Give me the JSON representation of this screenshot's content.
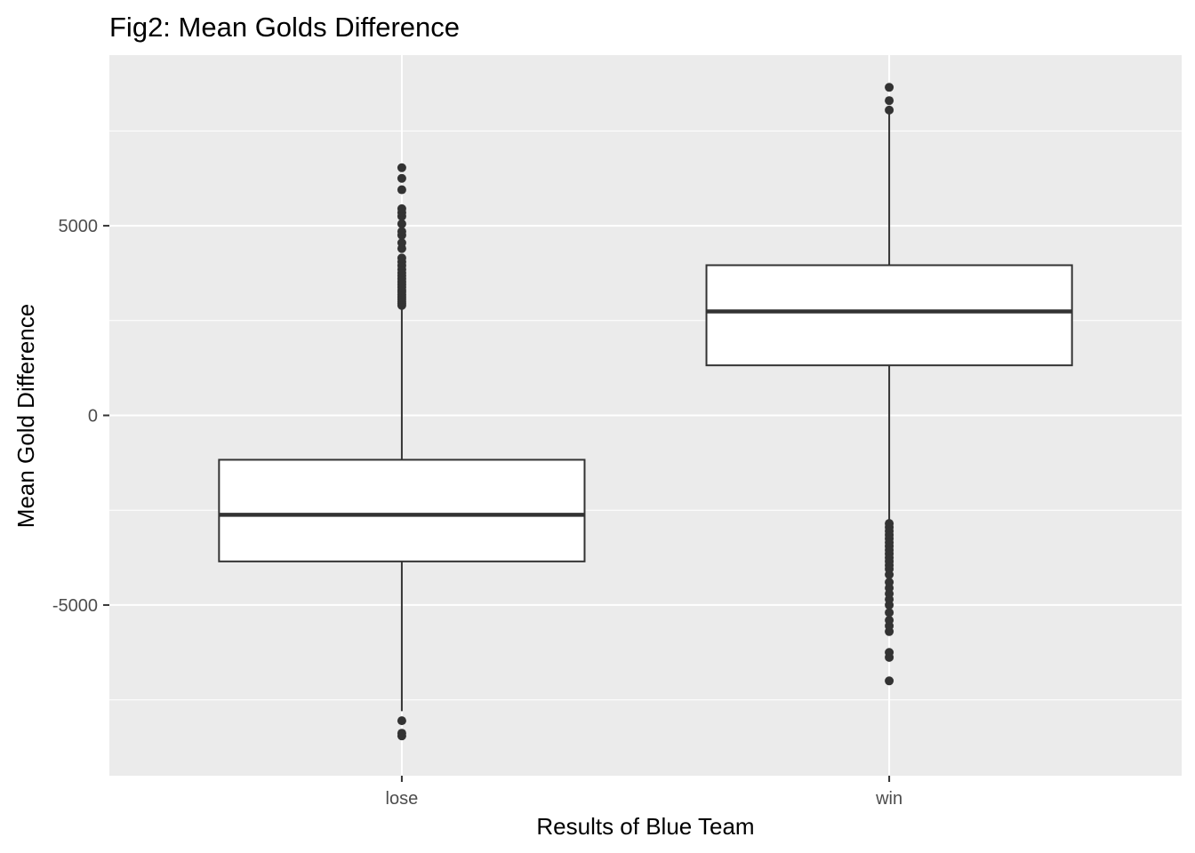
{
  "chart_data": {
    "type": "boxplot",
    "title": "Fig2: Mean Golds Difference",
    "xlabel": "Results of Blue Team",
    "ylabel": "Mean Gold Difference",
    "categories": [
      "lose",
      "win"
    ],
    "ylim": [
      -9500,
      9500
    ],
    "y_ticks": [
      -5000,
      0,
      5000
    ],
    "y_tick_labels": [
      "-5000",
      "0",
      "5000"
    ],
    "grid": true,
    "panel_background": "#ebebeb",
    "grid_color": "#ffffff",
    "box_fill": "#ffffff",
    "line_color": "#333333",
    "boxes": [
      {
        "category": "lose",
        "whisker_low": -7800,
        "q1": -3850,
        "median": -2620,
        "q3": -1170,
        "whisker_high": 2830,
        "outliers": [
          -8450,
          -8380,
          -8050,
          2900,
          2950,
          3000,
          3060,
          3120,
          3180,
          3250,
          3310,
          3380,
          3450,
          3520,
          3600,
          3680,
          3760,
          3850,
          3950,
          4050,
          4150,
          4400,
          4550,
          4750,
          4850,
          5050,
          5250,
          5350,
          5450,
          5950,
          6250,
          6530
        ]
      },
      {
        "category": "win",
        "whisker_low": -2780,
        "q1": 1320,
        "median": 2740,
        "q3": 3960,
        "whisker_high": 8000,
        "outliers": [
          -7000,
          -6380,
          -6250,
          -5700,
          -5550,
          -5400,
          -5200,
          -5000,
          -4850,
          -4700,
          -4550,
          -4400,
          -4200,
          -4050,
          -3950,
          -3850,
          -3750,
          -3650,
          -3550,
          -3450,
          -3350,
          -3250,
          -3150,
          -3050,
          -2950,
          -2850,
          8050,
          8300,
          8650
        ]
      }
    ]
  }
}
